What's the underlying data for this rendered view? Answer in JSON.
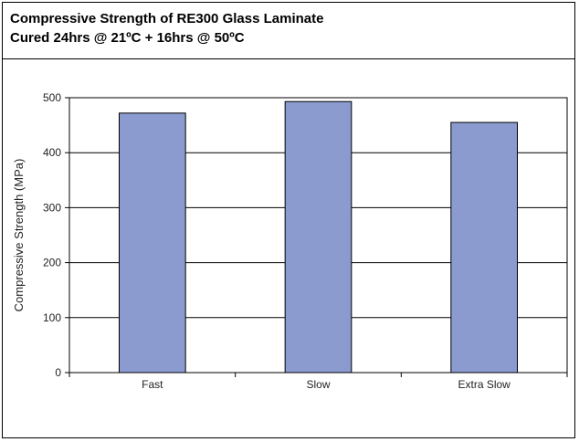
{
  "chart_data": {
    "type": "bar",
    "title": "Compressive Strength of RE300 Glass Laminate",
    "subtitle": "Cured 24hrs @ 21ºC + 16hrs @ 50ºC",
    "xlabel": "",
    "ylabel": "Compressive Strength (MPa)",
    "categories": [
      "Fast",
      "Slow",
      "Extra Slow"
    ],
    "values": [
      472,
      493,
      455
    ],
    "ylim": [
      0,
      500
    ],
    "yticks": [
      0,
      100,
      200,
      300,
      400,
      500
    ],
    "grid": true,
    "legend": "none",
    "bar_color": "#8b9bd0",
    "bar_edge_color": "#000000"
  }
}
